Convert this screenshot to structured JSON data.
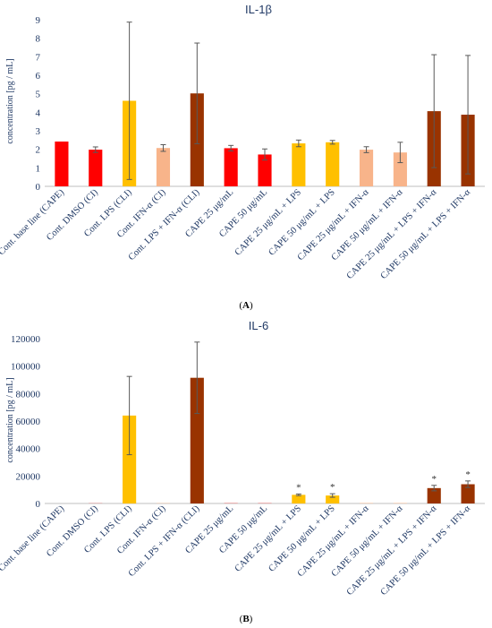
{
  "figure": {
    "panels": [
      "(A)",
      "(B)"
    ]
  },
  "colors": {
    "red": "#ff0000",
    "gold": "#ffc000",
    "peach": "#f8b48a",
    "brown": "#993300",
    "text": "#1f3864",
    "axis": "#bfbfbf"
  },
  "chart_data": [
    {
      "type": "bar",
      "title": "IL-1β",
      "ylabel": "concentration [pg / mL]",
      "xlabel": "",
      "ylim": [
        0,
        9
      ],
      "yticks": [
        0,
        1,
        2,
        3,
        4,
        5,
        6,
        7,
        8,
        9
      ],
      "grid": false,
      "categories": [
        "Cont. base line (CAPE)",
        "Cont. DMSO (CI)",
        "Cont. LPS (CLI)",
        "Cont. IFN-α (CI)",
        "Cont. LPS + IFN-α (CLI)",
        "CAPE 25 μg/mL",
        "CAPE 50 μg/mL",
        "CAPE 25 μg/mL + LPS",
        "CAPE 50 μg/mL + LPS",
        "CAPE 25 μg/mL + IFN-α",
        "CAPE 50 μg/mL + IFN-α",
        "CAPE 25 μg/mL + LPS + IFN-α",
        "CAPE 50 μg/mL + LPS + IFN-α"
      ],
      "values": [
        2.42,
        1.98,
        4.62,
        2.07,
        5.02,
        2.06,
        1.72,
        2.32,
        2.38,
        1.98,
        1.83,
        4.06,
        3.87
      ],
      "errors": [
        0,
        0.15,
        4.25,
        0.18,
        2.72,
        0.15,
        0.3,
        0.18,
        0.1,
        0.16,
        0.55,
        3.05,
        3.2
      ],
      "bar_colors": [
        "red",
        "red",
        "gold",
        "peach",
        "brown",
        "red",
        "red",
        "gold",
        "gold",
        "peach",
        "peach",
        "brown",
        "brown"
      ],
      "significance": [
        "",
        "",
        "",
        "",
        "",
        "",
        "",
        "",
        "",
        "",
        "",
        "",
        ""
      ]
    },
    {
      "type": "bar",
      "title": "IL-6",
      "ylabel": "concentration [pg / mL]",
      "xlabel": "",
      "ylim": [
        0,
        120000
      ],
      "yticks": [
        0,
        20000,
        40000,
        60000,
        80000,
        100000,
        120000
      ],
      "grid": false,
      "categories": [
        "Cont. base line (CAPE)",
        "Cont. DMSO (CI)",
        "Cont. LPS (CLI)",
        "Cont. IFN-α (CI)",
        "Cont. LPS + IFN-α (CLI)",
        "CAPE 25 μg/mL",
        "CAPE 50 μg/mL",
        "CAPE 25 μg/mL + LPS",
        "CAPE 50 μg/mL + LPS",
        "CAPE 25 μg/mL + IFN-α",
        "CAPE 50 μg/mL + IFN-α",
        "CAPE 25 μg/mL + LPS + IFN-α",
        "CAPE 50 μg/mL + LPS + IFN-α"
      ],
      "values": [
        0,
        100,
        64000,
        200,
        91500,
        150,
        150,
        6300,
        5800,
        300,
        300,
        11200,
        14000
      ],
      "errors": [
        0,
        0,
        28500,
        0,
        26000,
        0,
        0,
        600,
        1300,
        0,
        0,
        2000,
        2400
      ],
      "bar_colors": [
        "red",
        "red",
        "gold",
        "peach",
        "brown",
        "red",
        "red",
        "gold",
        "gold",
        "peach",
        "peach",
        "brown",
        "brown"
      ],
      "significance": [
        "",
        "",
        "",
        "",
        "",
        "",
        "",
        "*",
        "*",
        "",
        "",
        "*",
        "*"
      ]
    }
  ]
}
